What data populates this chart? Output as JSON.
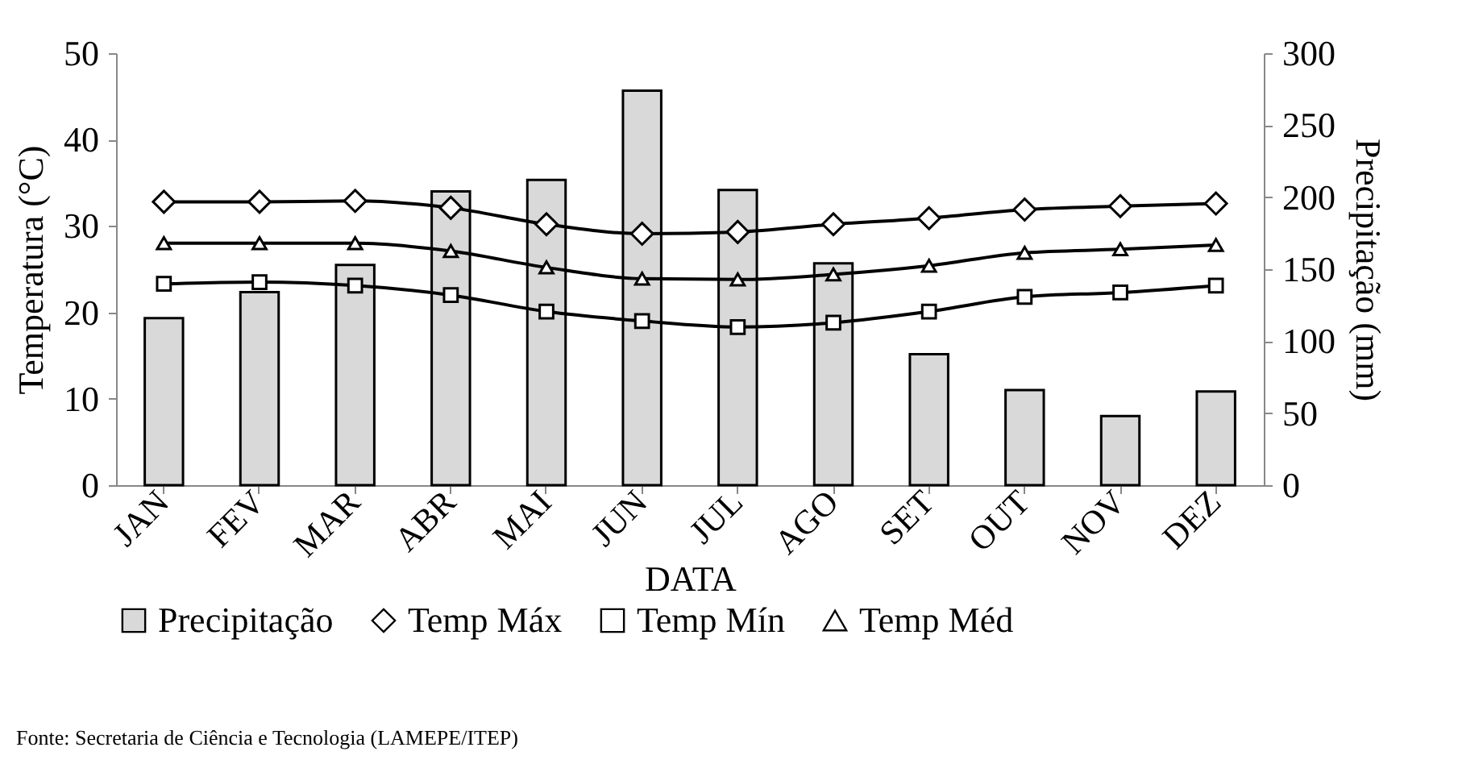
{
  "chart_data": {
    "type": "bar",
    "xlabel": "DATA",
    "ylabel": "Temperatura (°C)",
    "y2label": "Precipitação (mm)",
    "categories": [
      "JAN",
      "FEV",
      "MAR",
      "ABR",
      "MAI",
      "JUN",
      "JUL",
      "AGO",
      "SET",
      "OUT",
      "NOV",
      "DEZ"
    ],
    "series": [
      {
        "name": "Precipitação",
        "axis": "y2",
        "color": "#d9d9d9",
        "values": [
          116,
          134,
          153,
          204,
          212,
          274,
          205,
          154,
          91,
          66,
          48,
          65
        ]
      },
      {
        "name": "Temp Máx",
        "type": "line",
        "marker": "diamond",
        "color": "#000000",
        "values": [
          32.8,
          32.8,
          32.9,
          32.1,
          30.2,
          29.1,
          29.3,
          30.2,
          30.9,
          31.9,
          32.3,
          32.6
        ]
      },
      {
        "name": "Temp Mín",
        "type": "line",
        "marker": "square",
        "color": "#000000",
        "values": [
          23.3,
          23.5,
          23.1,
          22.0,
          20.1,
          19.0,
          18.3,
          18.8,
          20.1,
          21.8,
          22.3,
          23.1
        ]
      },
      {
        "name": "Temp Méd",
        "type": "line",
        "marker": "triangle",
        "color": "#000000",
        "values": [
          28.0,
          28.0,
          28.0,
          27.1,
          25.2,
          23.9,
          23.8,
          24.4,
          25.4,
          26.9,
          27.3,
          27.8
        ]
      }
    ],
    "ylim": [
      0,
      50
    ],
    "yticks": [
      0,
      10,
      20,
      30,
      40,
      50
    ],
    "y2lim": [
      0,
      300
    ],
    "y2ticks": [
      0,
      50,
      100,
      150,
      200,
      250,
      300
    ],
    "legend": "bottom",
    "annotations": [
      "Fonte: Secretaria de Ciência e Tecnologia (LAMEPE/ITEP)"
    ]
  }
}
